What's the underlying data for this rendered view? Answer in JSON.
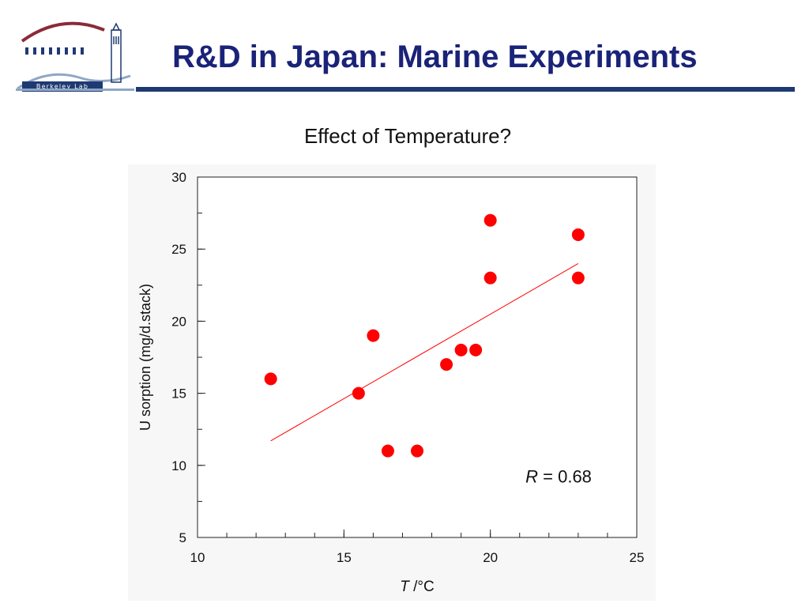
{
  "slide": {
    "title": "R&D in Japan: Marine Experiments",
    "subtitle": "Effect of Temperature?",
    "logo_text": "Berkeley Lab",
    "accent_color": "#1a2378",
    "logo_color": "#1f3a73"
  },
  "chart_data": {
    "type": "scatter",
    "title": "",
    "xlabel_italic": "T",
    "xlabel_rest": " /°C",
    "ylabel": "U sorption (mg/d.stack)",
    "xlim": [
      10,
      25
    ],
    "ylim": [
      5,
      30
    ],
    "x_ticks": [
      10,
      15,
      20,
      25
    ],
    "y_ticks": [
      5,
      10,
      15,
      20,
      25,
      30
    ],
    "x_minor_step": 1,
    "y_minor_step": 2.5,
    "grid": false,
    "marker_color": "#ff0000",
    "points": [
      {
        "x": 12.5,
        "y": 16
      },
      {
        "x": 15.5,
        "y": 15
      },
      {
        "x": 16,
        "y": 19
      },
      {
        "x": 16.5,
        "y": 11
      },
      {
        "x": 17.5,
        "y": 11
      },
      {
        "x": 18.5,
        "y": 17
      },
      {
        "x": 19,
        "y": 18
      },
      {
        "x": 19.5,
        "y": 18
      },
      {
        "x": 20,
        "y": 27
      },
      {
        "x": 20,
        "y": 23
      },
      {
        "x": 23,
        "y": 26
      },
      {
        "x": 23,
        "y": 23
      }
    ],
    "fit_line": {
      "x": [
        12.5,
        23
      ],
      "y": [
        11.7,
        24
      ]
    },
    "annotation": {
      "label_italic": "R",
      "label_rest": " = 0.68"
    }
  }
}
